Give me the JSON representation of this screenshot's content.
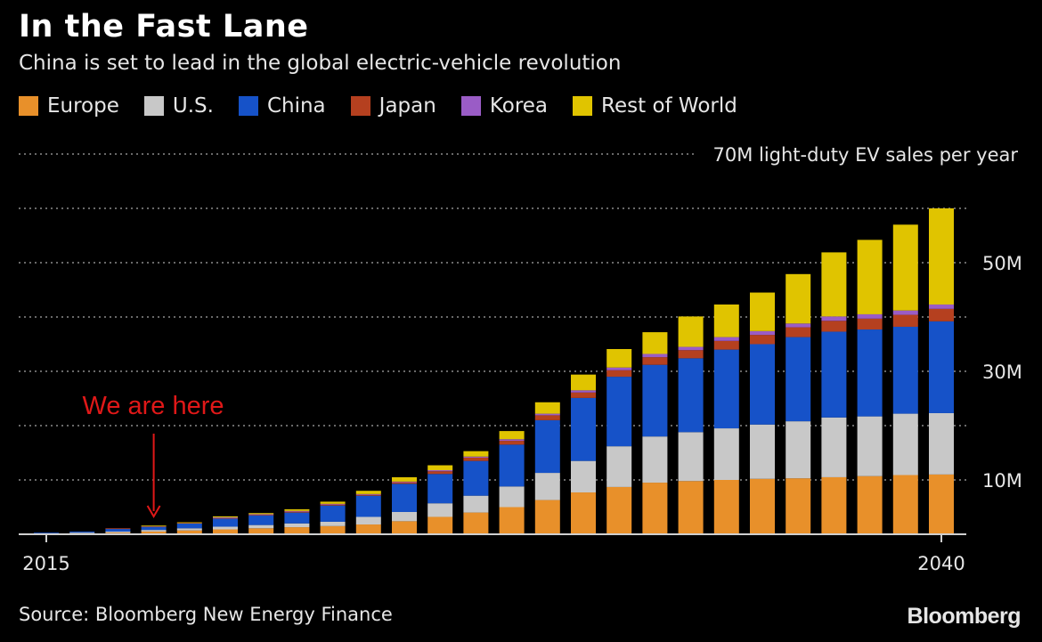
{
  "header": {
    "title": "In the Fast Lane",
    "subtitle": "China is set to lead in the global electric-vehicle revolution"
  },
  "footer": {
    "source": "Source: Bloomberg New Energy Finance",
    "brand": "Bloomberg"
  },
  "colors": {
    "Europe": "#e8902a",
    "U.S.": "#c8c8c8",
    "China": "#1652c8",
    "Japan": "#b5401f",
    "Korea": "#9a5cc6",
    "Rest of World": "#e0c400",
    "annotation": "#e01818",
    "grid": "#8c8c8c"
  },
  "chart_data": {
    "type": "bar",
    "stacked": true,
    "title": "In the Fast Lane",
    "subtitle": "China is set to lead in the global electric-vehicle revolution",
    "ylabel": "70M light-duty EV sales per year",
    "ylim": [
      0,
      70
    ],
    "grid": true,
    "legend_position": "top-left",
    "y_ticks": [
      {
        "value": 10,
        "label": "10M"
      },
      {
        "value": 30,
        "label": "30M"
      },
      {
        "value": 50,
        "label": "50M"
      }
    ],
    "y_gridlines": [
      10,
      20,
      30,
      40,
      50,
      60,
      70
    ],
    "x_tick_labels": [
      {
        "index": 0,
        "label": "2015"
      },
      {
        "index": 25,
        "label": "2040"
      }
    ],
    "categories": [
      "2015",
      "2016",
      "2017",
      "2018",
      "2019",
      "2020",
      "2021",
      "2022",
      "2023",
      "2024",
      "2025",
      "2026",
      "2027",
      "2028",
      "2029",
      "2030",
      "2031",
      "2032",
      "2033",
      "2034",
      "2035",
      "2036",
      "2037",
      "2038",
      "2039",
      "2040"
    ],
    "series": [
      {
        "name": "Europe",
        "values": [
          0.1,
          0.2,
          0.3,
          0.5,
          0.7,
          0.9,
          1.1,
          1.3,
          1.5,
          1.8,
          2.4,
          3.2,
          4.0,
          5.0,
          6.3,
          7.7,
          8.7,
          9.5,
          9.8,
          10.0,
          10.2,
          10.3,
          10.5,
          10.7,
          10.9,
          11.0
        ]
      },
      {
        "name": "U.S.",
        "values": [
          0.1,
          0.1,
          0.2,
          0.3,
          0.4,
          0.5,
          0.6,
          0.7,
          0.8,
          1.4,
          1.7,
          2.5,
          3.1,
          3.8,
          5.0,
          5.8,
          7.5,
          8.5,
          9.0,
          9.5,
          10.0,
          10.5,
          11.0,
          11.0,
          11.3,
          11.3
        ]
      },
      {
        "name": "China",
        "values": [
          0.1,
          0.2,
          0.5,
          0.6,
          0.9,
          1.5,
          1.8,
          2.0,
          3.0,
          3.9,
          5.2,
          5.4,
          6.4,
          7.7,
          9.7,
          11.6,
          12.8,
          13.2,
          13.6,
          14.5,
          14.8,
          15.5,
          15.8,
          16.0,
          16.0,
          16.9
        ]
      },
      {
        "name": "Japan",
        "values": [
          0.0,
          0.0,
          0.1,
          0.1,
          0.1,
          0.1,
          0.1,
          0.2,
          0.2,
          0.2,
          0.3,
          0.5,
          0.6,
          0.7,
          0.9,
          1.0,
          1.2,
          1.4,
          1.5,
          1.6,
          1.7,
          1.8,
          2.0,
          2.0,
          2.2,
          2.3
        ]
      },
      {
        "name": "Korea",
        "values": [
          0.0,
          0.0,
          0.0,
          0.0,
          0.0,
          0.1,
          0.1,
          0.1,
          0.1,
          0.1,
          0.1,
          0.2,
          0.2,
          0.3,
          0.3,
          0.4,
          0.5,
          0.6,
          0.6,
          0.7,
          0.7,
          0.7,
          0.8,
          0.8,
          0.8,
          0.8
        ]
      },
      {
        "name": "Rest of World",
        "values": [
          0.0,
          0.0,
          0.0,
          0.1,
          0.1,
          0.2,
          0.2,
          0.3,
          0.4,
          0.6,
          0.8,
          0.9,
          1.0,
          1.5,
          2.1,
          2.9,
          3.4,
          4.0,
          5.6,
          6.0,
          7.1,
          9.1,
          11.8,
          13.7,
          15.8,
          17.7
        ]
      }
    ],
    "annotations": [
      {
        "text": "We are here",
        "category": "2018"
      }
    ]
  }
}
